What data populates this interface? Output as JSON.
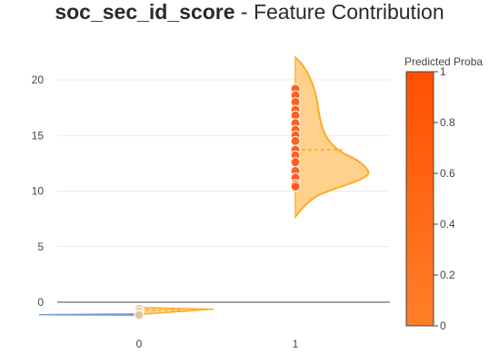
{
  "title": {
    "feature": "soc_sec_id_score",
    "suffix": " - Feature Contribution"
  },
  "colorbar": {
    "title": "Predicted Proba",
    "ticks": [
      "0",
      "0.2",
      "0.4",
      "0.6",
      "0.8",
      "1"
    ],
    "color_low": "#ff7f2a",
    "color_high": "#ff5000"
  },
  "colors": {
    "violin_0_blue": "#7a9ed6",
    "violin_orange_line": "#ffab24",
    "violin_orange_fill": "#ffcc80",
    "point_fill": "#ff5a1a",
    "axis_line": "#444444",
    "grid": "#e9e9e9"
  },
  "chart_data": {
    "type": "violin",
    "title": "soc_sec_id_score - Feature Contribution",
    "categories": [
      "0",
      "1"
    ],
    "y_ticks": [
      0,
      5,
      10,
      15,
      20
    ],
    "ylim": [
      -2.4,
      22.5
    ],
    "grid": true,
    "legend": "colorbar right",
    "series": [
      {
        "category": "0",
        "blue_side_values": [
          -1.1,
          -1.15,
          -1.05,
          -1.12
        ],
        "orange_side_values": [
          -0.55,
          -0.65,
          -0.75,
          -0.8,
          -0.9,
          -0.95,
          -1.0,
          -1.05,
          -1.1
        ],
        "median": -0.7,
        "points": [
          {
            "y": -0.6,
            "proba": 0.05
          },
          {
            "y": -0.85,
            "proba": 0.08
          },
          {
            "y": -1.1,
            "proba": 0.1
          },
          {
            "y": -1.15,
            "proba": 0.03
          }
        ]
      },
      {
        "category": "1",
        "range": [
          7.7,
          22.0
        ],
        "median": 13.7,
        "points": [
          {
            "y": 19.2,
            "proba": 0.95
          },
          {
            "y": 18.6,
            "proba": 0.93
          },
          {
            "y": 18.0,
            "proba": 0.96
          },
          {
            "y": 17.3,
            "proba": 0.92
          },
          {
            "y": 16.8,
            "proba": 0.97
          },
          {
            "y": 16.1,
            "proba": 0.94
          },
          {
            "y": 15.5,
            "proba": 0.95
          },
          {
            "y": 15.0,
            "proba": 0.96
          },
          {
            "y": 14.5,
            "proba": 0.93
          },
          {
            "y": 13.7,
            "proba": 0.98
          },
          {
            "y": 13.2,
            "proba": 0.94
          },
          {
            "y": 12.6,
            "proba": 0.95
          },
          {
            "y": 11.8,
            "proba": 0.96
          },
          {
            "y": 11.2,
            "proba": 0.92
          },
          {
            "y": 10.6,
            "proba": 0.97
          },
          {
            "y": 10.4,
            "proba": 0.95
          }
        ]
      }
    ]
  }
}
